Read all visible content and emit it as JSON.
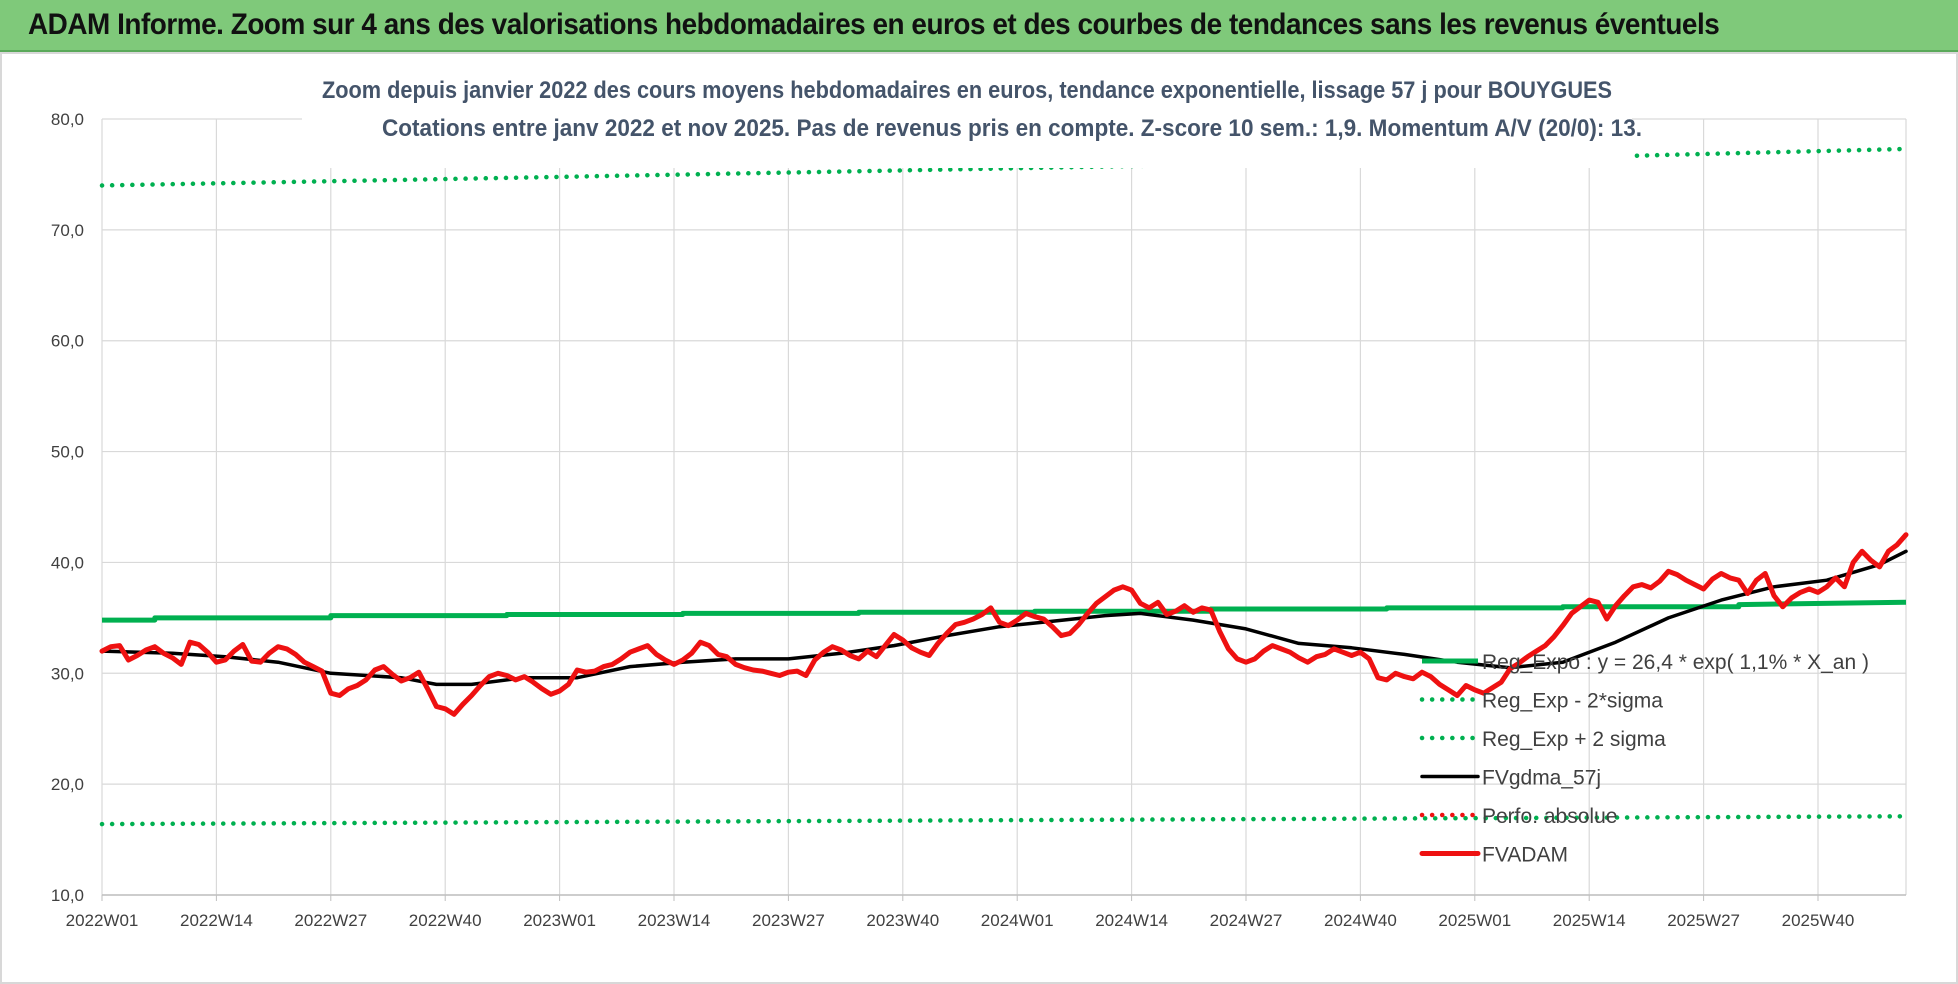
{
  "banner": {
    "title": "ADAM Informe. Zoom sur 4 ans des valorisations hebdomadaires en euros et des courbes de tendances sans les revenus éventuels"
  },
  "colors": {
    "banner_bg": "#7fc97a",
    "green": "#00b050",
    "black": "#000000",
    "red": "#ee1111",
    "grid": "#d9d9d9",
    "title_text": "#44546a"
  },
  "chart_data": {
    "type": "line",
    "title": "Zoom depuis janvier 2022 des cours moyens hebdomadaires en euros, tendance exponentielle, lissage 57 j pour BOUYGUES",
    "subtitle": "Cotations entre janv 2022 et nov 2025. Pas de revenus pris en compte. Z-score 10 sem.: 1,9. Momentum A/V (20/0): 13.",
    "xlabel": "",
    "ylabel": "",
    "ylim": [
      10,
      80
    ],
    "y_ticks": [
      "10,0",
      "20,0",
      "30,0",
      "40,0",
      "50,0",
      "60,0",
      "70,0",
      "80,0"
    ],
    "x_ticks": [
      "2022W01",
      "2022W14",
      "2022W27",
      "2022W40",
      "2023W01",
      "2023W14",
      "2023W27",
      "2023W40",
      "2024W01",
      "2024W14",
      "2024W27",
      "2024W40",
      "2025W01",
      "2025W14",
      "2025W27",
      "2025W40"
    ],
    "x_range_weeks": [
      0,
      205
    ],
    "grid": true,
    "legend_position": "bottom-right",
    "series": [
      {
        "name": "Reg_Expo : y = 26,4 * exp( 1,1% *  X_an )",
        "style": "solid",
        "color": "#00b050",
        "points": [
          [
            0,
            34.8
          ],
          [
            6,
            34.8
          ],
          [
            6,
            35.0
          ],
          [
            26,
            35.0
          ],
          [
            26,
            35.2
          ],
          [
            46,
            35.2
          ],
          [
            46,
            35.3
          ],
          [
            66,
            35.3
          ],
          [
            66,
            35.4
          ],
          [
            86,
            35.4
          ],
          [
            86,
            35.5
          ],
          [
            106,
            35.5
          ],
          [
            106,
            35.6
          ],
          [
            126,
            35.6
          ],
          [
            126,
            35.8
          ],
          [
            146,
            35.8
          ],
          [
            146,
            35.9
          ],
          [
            166,
            35.9
          ],
          [
            166,
            36.0
          ],
          [
            186,
            36.0
          ],
          [
            186,
            36.2
          ],
          [
            205,
            36.4
          ]
        ]
      },
      {
        "name": "Reg_Exp - 2*sigma",
        "style": "dotted",
        "color": "#00b050",
        "points": [
          [
            0,
            16.4
          ],
          [
            205,
            17.1
          ]
        ]
      },
      {
        "name": "Reg_Exp + 2 sigma",
        "style": "dotted",
        "color": "#00b050",
        "points": [
          [
            0,
            74.0
          ],
          [
            40,
            74.6
          ],
          [
            80,
            75.2
          ],
          [
            120,
            75.8
          ],
          [
            160,
            76.4
          ],
          [
            205,
            77.3
          ]
        ]
      },
      {
        "name": "FVgdma_57j",
        "style": "solid",
        "color": "#000000",
        "points": [
          [
            0,
            32.0
          ],
          [
            8,
            31.8
          ],
          [
            14,
            31.5
          ],
          [
            20,
            31.0
          ],
          [
            26,
            30.0
          ],
          [
            34,
            29.6
          ],
          [
            38,
            29.0
          ],
          [
            42,
            29.0
          ],
          [
            48,
            29.6
          ],
          [
            54,
            29.6
          ],
          [
            60,
            30.6
          ],
          [
            66,
            31.0
          ],
          [
            72,
            31.3
          ],
          [
            78,
            31.3
          ],
          [
            84,
            31.8
          ],
          [
            90,
            32.5
          ],
          [
            96,
            33.4
          ],
          [
            102,
            34.2
          ],
          [
            108,
            34.7
          ],
          [
            114,
            35.2
          ],
          [
            118,
            35.4
          ],
          [
            124,
            34.8
          ],
          [
            130,
            34.0
          ],
          [
            136,
            32.7
          ],
          [
            142,
            32.3
          ],
          [
            148,
            31.7
          ],
          [
            154,
            31.0
          ],
          [
            160,
            30.5
          ],
          [
            166,
            31.0
          ],
          [
            172,
            32.8
          ],
          [
            178,
            35.0
          ],
          [
            184,
            36.6
          ],
          [
            190,
            37.8
          ],
          [
            196,
            38.4
          ],
          [
            202,
            39.8
          ],
          [
            205,
            41.0
          ]
        ]
      },
      {
        "name": "Perfo. absolue",
        "style": "dotted",
        "color": "#ee1111",
        "points": []
      },
      {
        "name": "FVADAM",
        "style": "solid",
        "color": "#ee1111",
        "points": [
          [
            0,
            32.0
          ],
          [
            1,
            32.4
          ],
          [
            2,
            32.5
          ],
          [
            3,
            31.2
          ],
          [
            4,
            31.6
          ],
          [
            5,
            32.1
          ],
          [
            6,
            32.4
          ],
          [
            7,
            31.8
          ],
          [
            8,
            31.4
          ],
          [
            9,
            30.8
          ],
          [
            10,
            32.8
          ],
          [
            11,
            32.6
          ],
          [
            12,
            31.9
          ],
          [
            13,
            31.0
          ],
          [
            14,
            31.2
          ],
          [
            15,
            32.0
          ],
          [
            16,
            32.6
          ],
          [
            17,
            31.1
          ],
          [
            18,
            31.0
          ],
          [
            19,
            31.8
          ],
          [
            20,
            32.4
          ],
          [
            21,
            32.2
          ],
          [
            22,
            31.7
          ],
          [
            23,
            31.0
          ],
          [
            24,
            30.6
          ],
          [
            25,
            30.2
          ],
          [
            26,
            28.2
          ],
          [
            27,
            28.0
          ],
          [
            28,
            28.6
          ],
          [
            29,
            28.9
          ],
          [
            30,
            29.4
          ],
          [
            31,
            30.3
          ],
          [
            32,
            30.6
          ],
          [
            33,
            29.9
          ],
          [
            34,
            29.3
          ],
          [
            35,
            29.6
          ],
          [
            36,
            30.1
          ],
          [
            37,
            28.6
          ],
          [
            38,
            27.0
          ],
          [
            39,
            26.8
          ],
          [
            40,
            26.3
          ],
          [
            41,
            27.2
          ],
          [
            42,
            28.0
          ],
          [
            43,
            28.9
          ],
          [
            44,
            29.7
          ],
          [
            45,
            30.0
          ],
          [
            46,
            29.8
          ],
          [
            47,
            29.4
          ],
          [
            48,
            29.7
          ],
          [
            49,
            29.2
          ],
          [
            50,
            28.6
          ],
          [
            51,
            28.1
          ],
          [
            52,
            28.4
          ],
          [
            53,
            29.0
          ],
          [
            54,
            30.3
          ],
          [
            55,
            30.1
          ],
          [
            56,
            30.2
          ],
          [
            57,
            30.6
          ],
          [
            58,
            30.8
          ],
          [
            59,
            31.3
          ],
          [
            60,
            31.9
          ],
          [
            61,
            32.2
          ],
          [
            62,
            32.5
          ],
          [
            63,
            31.7
          ],
          [
            64,
            31.2
          ],
          [
            65,
            30.8
          ],
          [
            66,
            31.2
          ],
          [
            67,
            31.8
          ],
          [
            68,
            32.8
          ],
          [
            69,
            32.5
          ],
          [
            70,
            31.7
          ],
          [
            71,
            31.5
          ],
          [
            72,
            30.8
          ],
          [
            73,
            30.5
          ],
          [
            74,
            30.3
          ],
          [
            75,
            30.2
          ],
          [
            76,
            30.0
          ],
          [
            77,
            29.8
          ],
          [
            78,
            30.1
          ],
          [
            79,
            30.2
          ],
          [
            80,
            29.8
          ],
          [
            81,
            31.2
          ],
          [
            82,
            31.9
          ],
          [
            83,
            32.4
          ],
          [
            84,
            32.1
          ],
          [
            85,
            31.6
          ],
          [
            86,
            31.3
          ],
          [
            87,
            32.0
          ],
          [
            88,
            31.5
          ],
          [
            89,
            32.5
          ],
          [
            90,
            33.5
          ],
          [
            91,
            33.0
          ],
          [
            92,
            32.3
          ],
          [
            93,
            31.9
          ],
          [
            94,
            31.6
          ],
          [
            95,
            32.7
          ],
          [
            96,
            33.6
          ],
          [
            97,
            34.4
          ],
          [
            98,
            34.6
          ],
          [
            99,
            34.9
          ],
          [
            100,
            35.3
          ],
          [
            101,
            35.9
          ],
          [
            102,
            34.6
          ],
          [
            103,
            34.3
          ],
          [
            104,
            34.8
          ],
          [
            105,
            35.4
          ],
          [
            106,
            35.1
          ],
          [
            107,
            34.9
          ],
          [
            108,
            34.2
          ],
          [
            109,
            33.4
          ],
          [
            110,
            33.6
          ],
          [
            111,
            34.4
          ],
          [
            112,
            35.4
          ],
          [
            113,
            36.3
          ],
          [
            114,
            36.9
          ],
          [
            115,
            37.5
          ],
          [
            116,
            37.8
          ],
          [
            117,
            37.5
          ],
          [
            118,
            36.3
          ],
          [
            119,
            35.9
          ],
          [
            120,
            36.4
          ],
          [
            121,
            35.3
          ],
          [
            122,
            35.6
          ],
          [
            123,
            36.1
          ],
          [
            124,
            35.5
          ],
          [
            125,
            35.9
          ],
          [
            126,
            35.7
          ],
          [
            127,
            33.8
          ],
          [
            128,
            32.2
          ],
          [
            129,
            31.3
          ],
          [
            130,
            31.0
          ],
          [
            131,
            31.3
          ],
          [
            132,
            32.0
          ],
          [
            133,
            32.5
          ],
          [
            134,
            32.2
          ],
          [
            135,
            31.9
          ],
          [
            136,
            31.4
          ],
          [
            137,
            31.0
          ],
          [
            138,
            31.5
          ],
          [
            139,
            31.7
          ],
          [
            140,
            32.2
          ],
          [
            141,
            31.9
          ],
          [
            142,
            31.6
          ],
          [
            143,
            31.9
          ],
          [
            144,
            31.3
          ],
          [
            145,
            29.6
          ],
          [
            146,
            29.4
          ],
          [
            147,
            30.0
          ],
          [
            148,
            29.7
          ],
          [
            149,
            29.5
          ],
          [
            150,
            30.1
          ],
          [
            151,
            29.7
          ],
          [
            152,
            29.0
          ],
          [
            153,
            28.5
          ],
          [
            154,
            28.0
          ],
          [
            155,
            28.9
          ],
          [
            156,
            28.5
          ],
          [
            157,
            28.2
          ],
          [
            158,
            28.7
          ],
          [
            159,
            29.2
          ],
          [
            160,
            30.4
          ],
          [
            161,
            30.9
          ],
          [
            162,
            31.5
          ],
          [
            163,
            32.0
          ],
          [
            164,
            32.5
          ],
          [
            165,
            33.3
          ],
          [
            166,
            34.3
          ],
          [
            167,
            35.4
          ],
          [
            168,
            36.0
          ],
          [
            169,
            36.6
          ],
          [
            170,
            36.4
          ],
          [
            171,
            34.9
          ],
          [
            172,
            36.1
          ],
          [
            173,
            37.0
          ],
          [
            174,
            37.8
          ],
          [
            175,
            38.0
          ],
          [
            176,
            37.7
          ],
          [
            177,
            38.3
          ],
          [
            178,
            39.2
          ],
          [
            179,
            38.9
          ],
          [
            180,
            38.4
          ],
          [
            181,
            38.0
          ],
          [
            182,
            37.6
          ],
          [
            183,
            38.5
          ],
          [
            184,
            39.0
          ],
          [
            185,
            38.6
          ],
          [
            186,
            38.4
          ],
          [
            187,
            37.2
          ],
          [
            188,
            38.4
          ],
          [
            189,
            39.0
          ],
          [
            190,
            37.0
          ],
          [
            191,
            36.0
          ],
          [
            192,
            36.8
          ],
          [
            193,
            37.3
          ],
          [
            194,
            37.6
          ],
          [
            195,
            37.3
          ],
          [
            196,
            37.8
          ],
          [
            197,
            38.6
          ],
          [
            198,
            37.8
          ],
          [
            199,
            40.0
          ],
          [
            200,
            41.0
          ],
          [
            201,
            40.2
          ],
          [
            202,
            39.6
          ],
          [
            203,
            41.0
          ],
          [
            204,
            41.6
          ],
          [
            205,
            42.5
          ]
        ]
      }
    ]
  }
}
